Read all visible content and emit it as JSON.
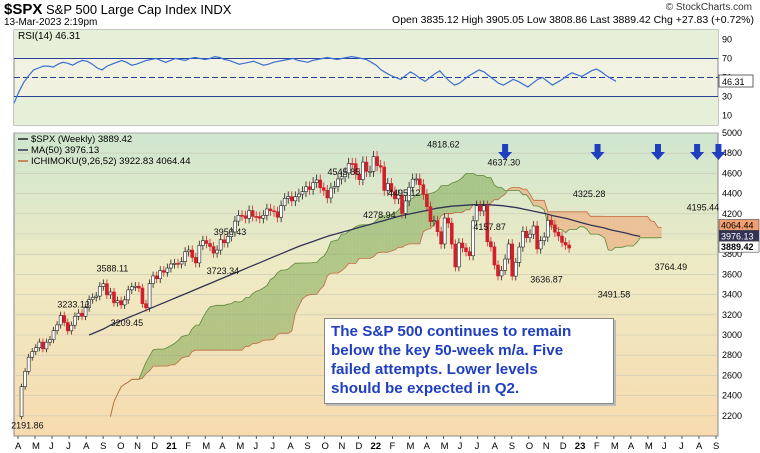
{
  "header": {
    "symbol": "$SPX",
    "name": "S&P 500 Large Cap Index INDX",
    "date": "13-Mar-2023 2:19pm",
    "quote": "Open 3835.12  High 3905.05  Low 3808.86  Last 3889.42  Chg +27.83 (+0.72%)",
    "brand": "© StockCharts.com"
  },
  "annotation": {
    "line1": "The S&P 500 continues to remain",
    "line2": "below the key 50-week m/a.  Five",
    "line3": "failed attempts.  Lower levels",
    "line4": "should be expected in Q2."
  },
  "colors": {
    "up": "#ffffff",
    "down": "#d0202a",
    "ma": "#333355",
    "cloud_bull": "#7faa55",
    "cloud_bear": "#f0a070",
    "rsi": "#3a6fd0",
    "arrow": "#1f3fbf"
  },
  "chart_data": [
    {
      "type": "line",
      "title": "RSI(14) 46.31",
      "ylim": [
        0,
        100
      ],
      "y_ticks": [
        10,
        30,
        50,
        70,
        90
      ],
      "reference_lines": [
        30,
        50,
        70
      ],
      "last_label": "46.31",
      "series": [
        {
          "name": "RSI(14)",
          "values": [
            23,
            35,
            45,
            52,
            58,
            60,
            62,
            62,
            61,
            64,
            66,
            65,
            63,
            66,
            68,
            67,
            64,
            60,
            58,
            62,
            64,
            66,
            68,
            66,
            63,
            64,
            66,
            68,
            69,
            70,
            68,
            66,
            68,
            70,
            69,
            68,
            70,
            71,
            70,
            69,
            70,
            72,
            71,
            69,
            68,
            66,
            64,
            65,
            66,
            67,
            65,
            63,
            64,
            66,
            67,
            68,
            69,
            70,
            68,
            67,
            66,
            68,
            69,
            70,
            71,
            70,
            69,
            70,
            71,
            72,
            71,
            70,
            69,
            66,
            63,
            58,
            55,
            52,
            50,
            48,
            52,
            56,
            53,
            49,
            46,
            50,
            54,
            57,
            51,
            46,
            42,
            44,
            48,
            52,
            55,
            58,
            56,
            52,
            48,
            44,
            42,
            45,
            48,
            46,
            43,
            40,
            44,
            48,
            50,
            46,
            42,
            45,
            48,
            52,
            55,
            53,
            51,
            54,
            57,
            59,
            56,
            52,
            49,
            46
          ]
        }
      ]
    },
    {
      "type": "line",
      "title": "$SPX (Weekly) 3889.42",
      "ylim": [
        2000,
        5000
      ],
      "y_ticks": [
        2200,
        2400,
        2600,
        2800,
        3000,
        3200,
        3400,
        3600,
        3800,
        4000,
        4200,
        4400,
        4600,
        4800,
        5000
      ],
      "x_labels": [
        "A",
        "M",
        "J",
        "J",
        "A",
        "S",
        "O",
        "N",
        "D",
        "21",
        "F",
        "M",
        "A",
        "M",
        "J",
        "J",
        "A",
        "S",
        "O",
        "N",
        "D",
        "22",
        "F",
        "M",
        "A",
        "M",
        "J",
        "J",
        "A",
        "S",
        "O",
        "N",
        "D",
        "23",
        "F",
        "M",
        "A",
        "M",
        "J",
        "J",
        "A",
        "S"
      ],
      "legend": [
        "$SPX (Weekly) 3889.42",
        "MA(50) 3976.13",
        "ICHIMOKU(9,26,52) 3922.83 4064.44"
      ],
      "price_tags": [
        "4064.44",
        "3976.13",
        "3889.42"
      ],
      "annotations": [
        {
          "text": "2191.86",
          "x": 2,
          "y": 2191.86
        },
        {
          "text": "3233.13",
          "x": 15,
          "y": 3233.13
        },
        {
          "text": "3209.45",
          "x": 30,
          "y": 3209.45
        },
        {
          "text": "3588.11",
          "x": 26,
          "y": 3588.11
        },
        {
          "text": "3723.34",
          "x": 57,
          "y": 3723.34
        },
        {
          "text": "3950.43",
          "x": 59,
          "y": 3950.43
        },
        {
          "text": "4545.85",
          "x": 91,
          "y": 4545.85
        },
        {
          "text": "4278.94",
          "x": 101,
          "y": 4278.94
        },
        {
          "text": "4495.12",
          "x": 108,
          "y": 4495.12
        },
        {
          "text": "4818.62",
          "x": 119,
          "y": 4818.62
        },
        {
          "text": "4157.87",
          "x": 132,
          "y": 4157.87
        },
        {
          "text": "4637.30",
          "x": 136,
          "y": 4637.3
        },
        {
          "text": "3636.87",
          "x": 148,
          "y": 3636.87
        },
        {
          "text": "4325.28",
          "x": 160,
          "y": 4325.28
        },
        {
          "text": "3491.58",
          "x": 167,
          "y": 3491.58
        },
        {
          "text": "3764.49",
          "x": 183,
          "y": 3764.49
        },
        {
          "text": "4195.44",
          "x": 192,
          "y": 4195.44
        }
      ],
      "arrows_at_x": [
        137,
        163,
        180,
        191,
        197
      ],
      "series": [
        {
          "name": "$SPX (Weekly)",
          "values": [
            2191.86,
            2488,
            2640,
            2780,
            2836,
            2874,
            2930,
            2863,
            2929,
            2955,
            3044,
            3100,
            3193,
            3124,
            3041,
            3097,
            3185,
            3216,
            3185,
            3271,
            3351,
            3372,
            3385,
            3481,
            3508,
            3397,
            3426,
            3319,
            3340,
            3298,
            3348,
            3447,
            3477,
            3483,
            3465,
            3310,
            3269,
            3509,
            3585,
            3557,
            3638,
            3621,
            3663,
            3703,
            3709,
            3703,
            3727,
            3824,
            3841,
            3768,
            3714,
            3887,
            3935,
            3906,
            3876,
            3811,
            3841,
            3943,
            3913,
            3974,
            4020,
            4128,
            4185,
            4180,
            4155,
            4232,
            4174,
            4173,
            4156,
            4185,
            4248,
            4230,
            4221,
            4166,
            4281,
            4352,
            4370,
            4328,
            4369,
            4395,
            4419,
            4468,
            4441,
            4509,
            4535,
            4458,
            4432,
            4357,
            4455,
            4471,
            4545,
            4567,
            4605,
            4698,
            4697,
            4594,
            4538,
            4712,
            4620,
            4620,
            4766,
            4677,
            4663,
            4432,
            4500,
            4418,
            4348,
            4385,
            4204,
            4328,
            4463,
            4543,
            4545,
            4488,
            4392,
            4271,
            4123,
            4132,
            4023,
            3901,
            4158,
            4108,
            3900,
            3674,
            3911,
            3863,
            3825,
            3785,
            4130,
            4280,
            4228,
            4280,
            3924,
            3873,
            3693,
            3585,
            3640,
            3752,
            3901,
            3583,
            3719,
            3871,
            4027,
            3963,
            3998,
            4079,
            3852,
            3934,
            3970,
            4136,
            4090,
            4018,
            3980,
            3917,
            3891,
            3861
          ],
          "ma50": [
            3000,
            3030,
            3060,
            3100,
            3130,
            3160,
            3190,
            3220,
            3250,
            3280,
            3310,
            3340,
            3370,
            3400,
            3430,
            3460,
            3490,
            3520,
            3550,
            3580,
            3610,
            3640,
            3670,
            3700,
            3730,
            3760,
            3790,
            3820,
            3850,
            3880,
            3905,
            3930,
            3955,
            3980,
            4000,
            4020,
            4040,
            4060,
            4080,
            4100,
            4120,
            4140,
            4160,
            4180,
            4195,
            4210,
            4225,
            4240,
            4255,
            4265,
            4275,
            4280,
            4285,
            4290,
            4290,
            4290,
            4285,
            4280,
            4270,
            4260,
            4245,
            4230,
            4215,
            4200,
            4180,
            4165,
            4150,
            4130,
            4110,
            4090,
            4075,
            4060,
            4040,
            4025,
            4010,
            3990,
            3976
          ]
        }
      ]
    }
  ]
}
